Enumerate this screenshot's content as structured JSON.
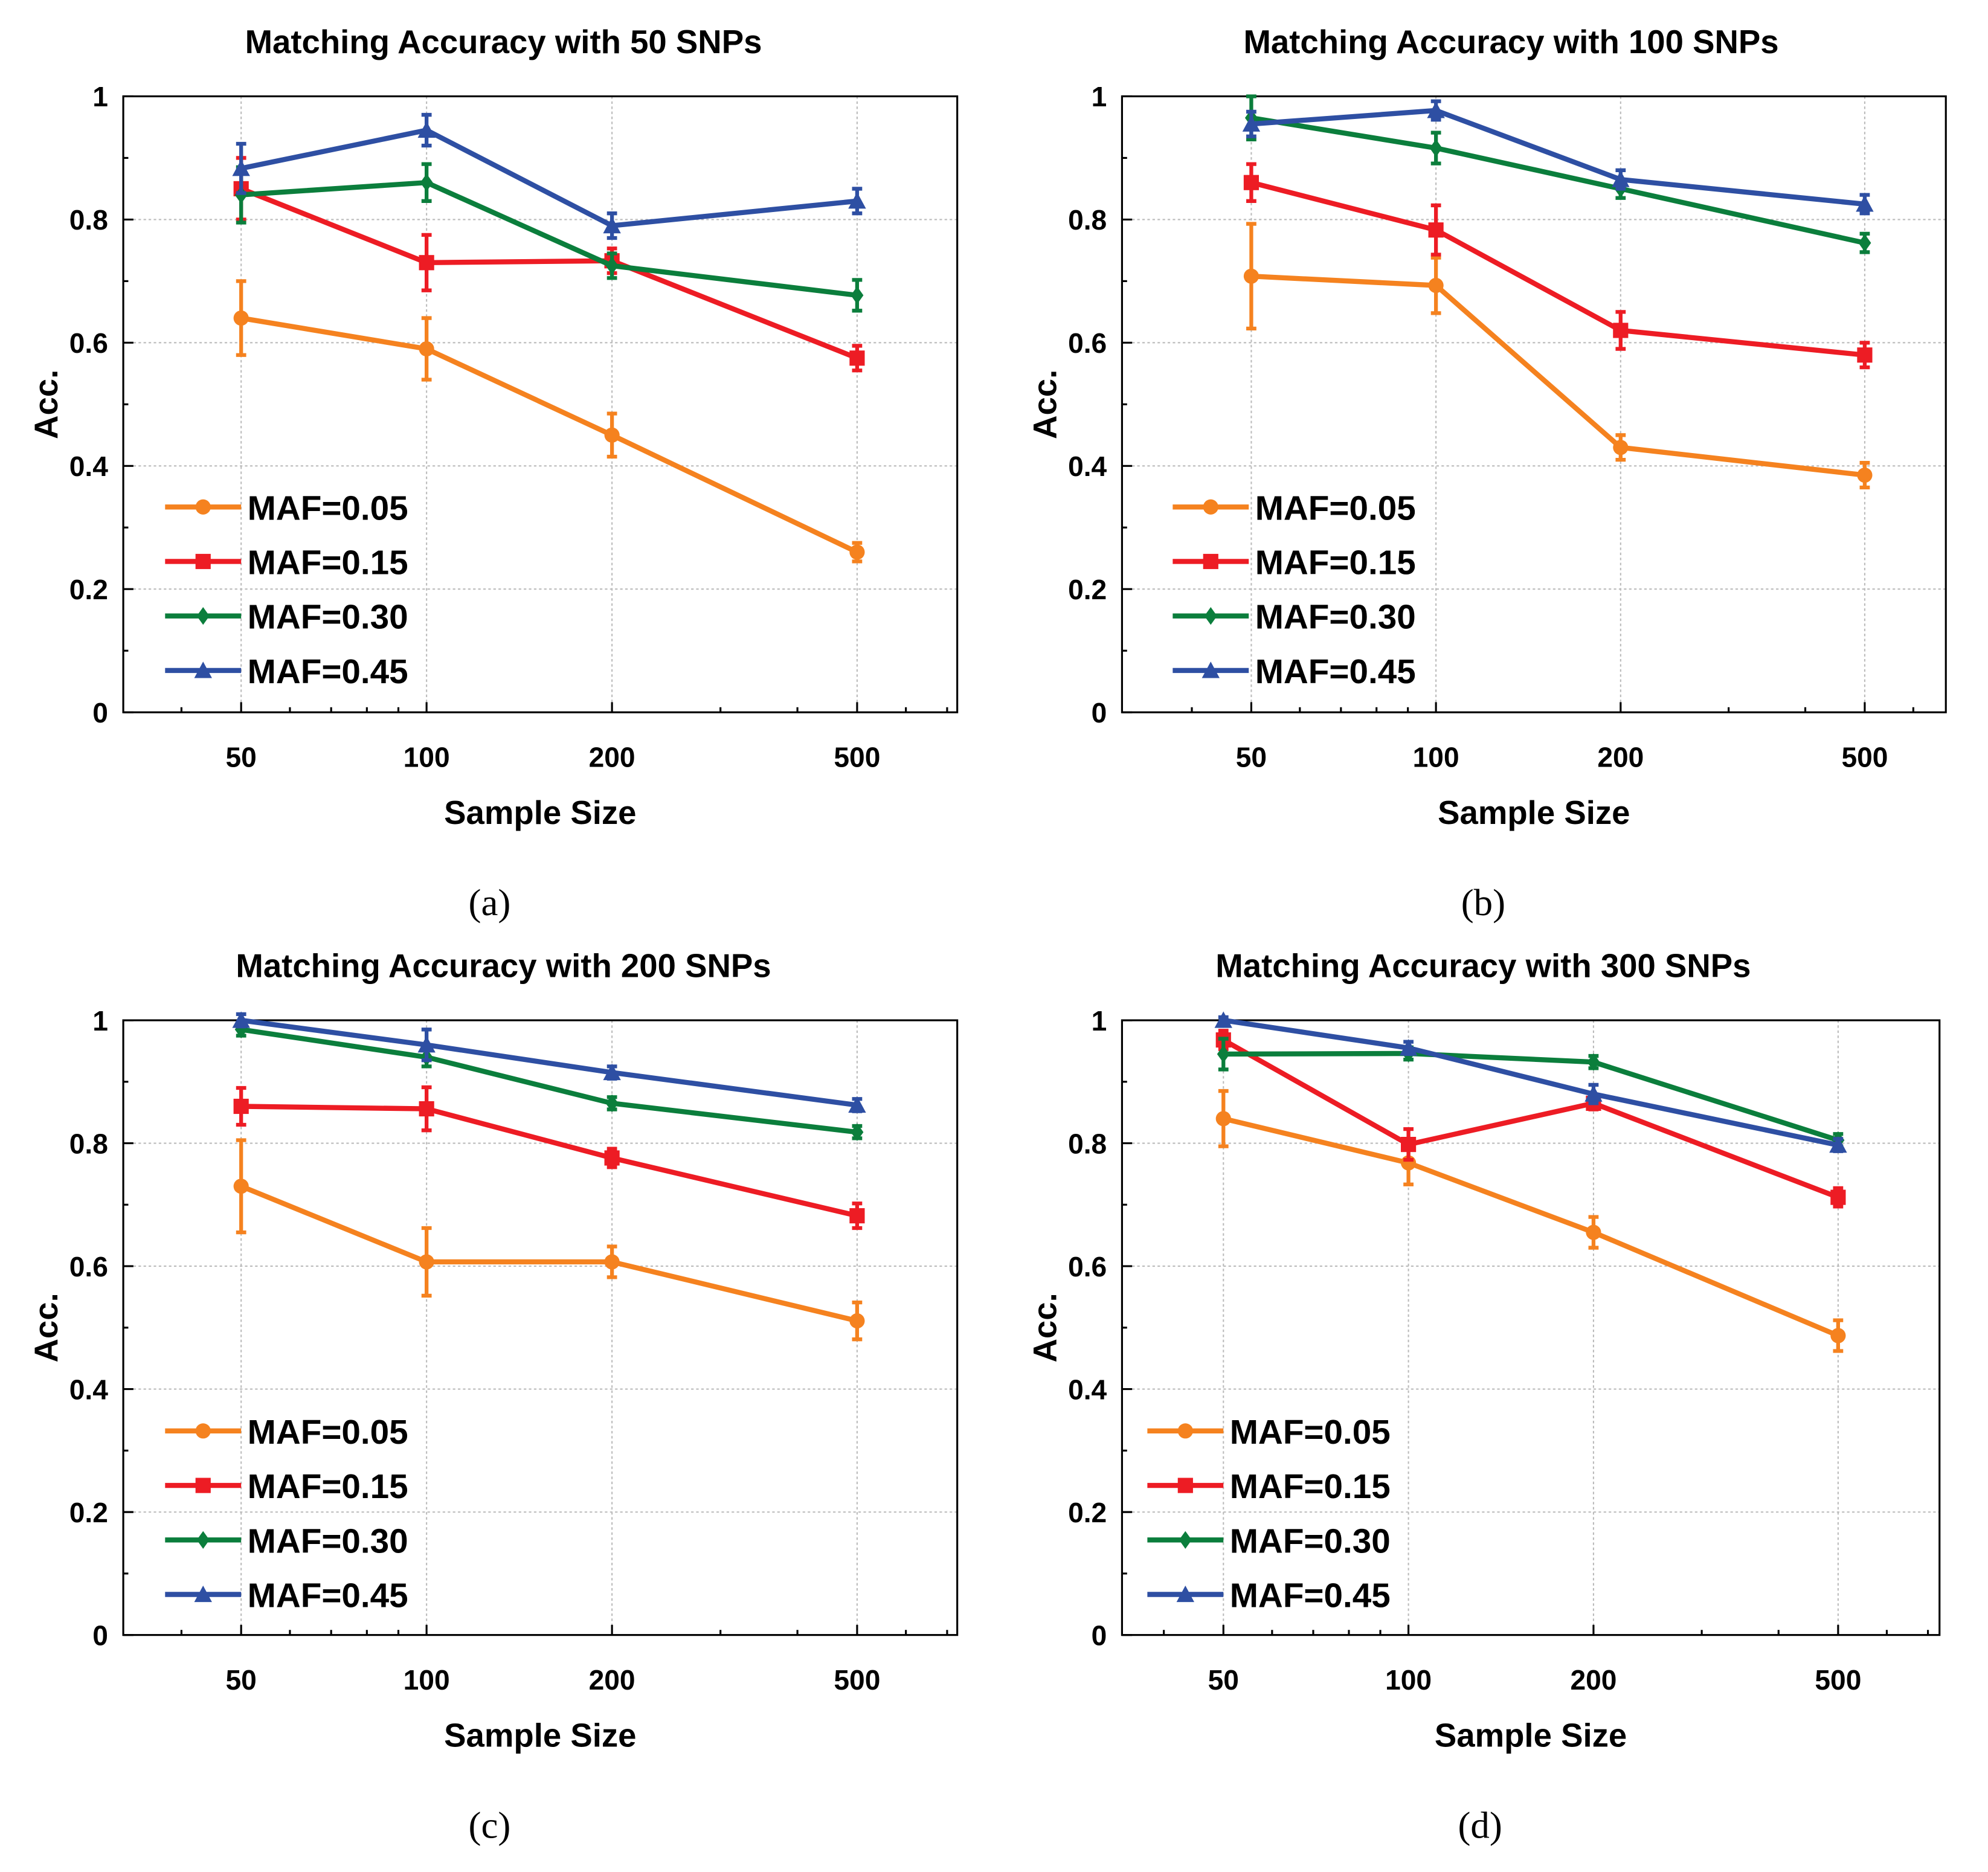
{
  "chart_data": [
    {
      "type": "line",
      "panel_label": "(a)",
      "title": "Matching Accuracy with 50 SNPs",
      "xlabel": "Sample Size",
      "ylabel": "Acc.",
      "x_scale": "log",
      "categories": [
        50,
        100,
        200,
        500
      ],
      "xticklabels": [
        "50",
        "100",
        "200",
        "500"
      ],
      "yticklabels": [
        "0",
        "0.2",
        "0.4",
        "0.6",
        "0.8",
        "1"
      ],
      "ylim": [
        0,
        1
      ],
      "grid": true,
      "legend": "bottom-left",
      "series": [
        {
          "name": "MAF=0.05",
          "color": "#f5821f",
          "marker": "circle",
          "values": [
            0.64,
            0.59,
            0.45,
            0.26
          ],
          "errors": [
            0.06,
            0.05,
            0.035,
            0.015
          ]
        },
        {
          "name": "MAF=0.15",
          "color": "#ed1c24",
          "marker": "square",
          "values": [
            0.85,
            0.73,
            0.733,
            0.575
          ],
          "errors": [
            0.05,
            0.045,
            0.02,
            0.02
          ]
        },
        {
          "name": "MAF=0.30",
          "color": "#0b7e3c",
          "marker": "diamond",
          "values": [
            0.84,
            0.86,
            0.725,
            0.677
          ],
          "errors": [
            0.045,
            0.03,
            0.02,
            0.025
          ]
        },
        {
          "name": "MAF=0.45",
          "color": "#2e4fa3",
          "marker": "triangle",
          "values": [
            0.883,
            0.945,
            0.79,
            0.83
          ],
          "errors": [
            0.04,
            0.025,
            0.02,
            0.02
          ]
        }
      ]
    },
    {
      "type": "line",
      "panel_label": "(b)",
      "title": "Matching Accuracy with 100 SNPs",
      "xlabel": "Sample Size",
      "ylabel": "Acc.",
      "x_scale": "log",
      "categories": [
        50,
        100,
        200,
        500
      ],
      "xticklabels": [
        "50",
        "100",
        "200",
        "500"
      ],
      "yticklabels": [
        "0",
        "0.2",
        "0.4",
        "0.6",
        "0.8",
        "1"
      ],
      "ylim": [
        0,
        1
      ],
      "grid": true,
      "legend": "bottom-left",
      "series": [
        {
          "name": "MAF=0.05",
          "color": "#f5821f",
          "marker": "circle",
          "values": [
            0.708,
            0.693,
            0.43,
            0.385
          ],
          "errors": [
            0.085,
            0.045,
            0.02,
            0.02
          ]
        },
        {
          "name": "MAF=0.15",
          "color": "#ed1c24",
          "marker": "square",
          "values": [
            0.86,
            0.783,
            0.62,
            0.58
          ],
          "errors": [
            0.03,
            0.04,
            0.03,
            0.02
          ]
        },
        {
          "name": "MAF=0.30",
          "color": "#0b7e3c",
          "marker": "diamond",
          "values": [
            0.965,
            0.916,
            0.85,
            0.762
          ],
          "errors": [
            0.035,
            0.025,
            0.015,
            0.015
          ]
        },
        {
          "name": "MAF=0.45",
          "color": "#2e4fa3",
          "marker": "triangle",
          "values": [
            0.955,
            0.977,
            0.865,
            0.825
          ],
          "errors": [
            0.02,
            0.015,
            0.015,
            0.015
          ]
        }
      ]
    },
    {
      "type": "line",
      "panel_label": "(c)",
      "title": "Matching Accuracy with 200 SNPs",
      "xlabel": "Sample Size",
      "ylabel": "Acc.",
      "x_scale": "log",
      "categories": [
        50,
        100,
        200,
        500
      ],
      "xticklabels": [
        "50",
        "100",
        "200",
        "500"
      ],
      "yticklabels": [
        "0",
        "0.2",
        "0.4",
        "0.6",
        "0.8",
        "1"
      ],
      "ylim": [
        0,
        1
      ],
      "grid": true,
      "legend": "bottom-left",
      "series": [
        {
          "name": "MAF=0.05",
          "color": "#f5821f",
          "marker": "circle",
          "values": [
            0.73,
            0.607,
            0.607,
            0.511
          ],
          "errors": [
            0.075,
            0.055,
            0.025,
            0.03
          ]
        },
        {
          "name": "MAF=0.15",
          "color": "#ed1c24",
          "marker": "square",
          "values": [
            0.86,
            0.856,
            0.776,
            0.682
          ],
          "errors": [
            0.03,
            0.035,
            0.015,
            0.02
          ]
        },
        {
          "name": "MAF=0.30",
          "color": "#0b7e3c",
          "marker": "diamond",
          "values": [
            0.985,
            0.94,
            0.865,
            0.818
          ],
          "errors": [
            0.01,
            0.015,
            0.01,
            0.01
          ]
        },
        {
          "name": "MAF=0.45",
          "color": "#2e4fa3",
          "marker": "triangle",
          "values": [
            1.0,
            0.96,
            0.915,
            0.862
          ],
          "errors": [
            0.01,
            0.025,
            0.01,
            0.01
          ]
        }
      ]
    },
    {
      "type": "line",
      "panel_label": "(d)",
      "title": "Matching Accuracy with 300 SNPs",
      "xlabel": "Sample Size",
      "ylabel": "Acc.",
      "x_scale": "log",
      "categories": [
        50,
        100,
        200,
        500
      ],
      "xticklabels": [
        "50",
        "100",
        "200",
        "500"
      ],
      "yticklabels": [
        "0",
        "0.2",
        "0.4",
        "0.6",
        "0.8",
        "1"
      ],
      "ylim": [
        0,
        1
      ],
      "grid": true,
      "legend": "bottom-left",
      "series": [
        {
          "name": "MAF=0.05",
          "color": "#f5821f",
          "marker": "circle",
          "values": [
            0.84,
            0.768,
            0.655,
            0.487
          ],
          "errors": [
            0.045,
            0.035,
            0.025,
            0.025
          ]
        },
        {
          "name": "MAF=0.15",
          "color": "#ed1c24",
          "marker": "square",
          "values": [
            0.968,
            0.798,
            0.865,
            0.712
          ],
          "errors": [
            0.015,
            0.025,
            0.01,
            0.015
          ]
        },
        {
          "name": "MAF=0.30",
          "color": "#0b7e3c",
          "marker": "diamond",
          "values": [
            0.945,
            0.946,
            0.932,
            0.805
          ],
          "errors": [
            0.025,
            0.01,
            0.01,
            0.01
          ]
        },
        {
          "name": "MAF=0.45",
          "color": "#2e4fa3",
          "marker": "triangle",
          "values": [
            1.0,
            0.955,
            0.88,
            0.797
          ],
          "errors": [
            0.005,
            0.01,
            0.015,
            0.01
          ]
        }
      ]
    }
  ]
}
